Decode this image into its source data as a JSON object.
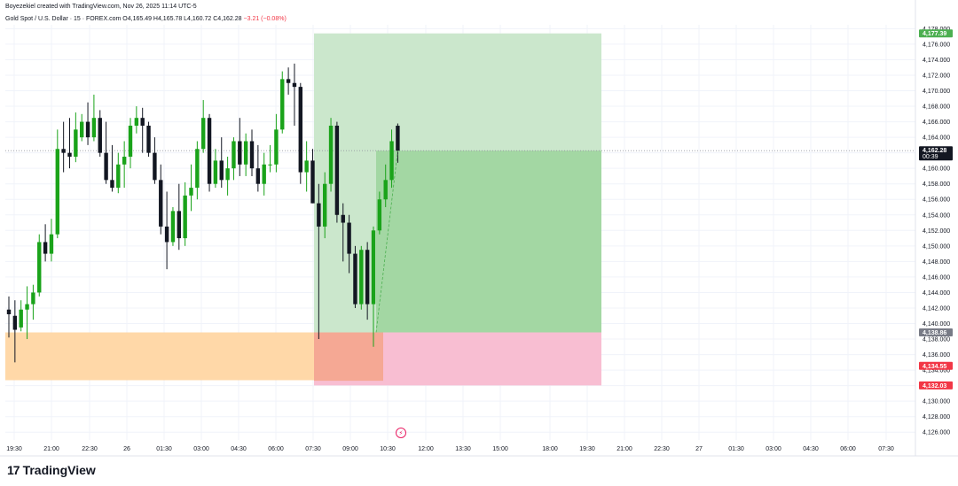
{
  "header": {
    "attribution": "Boyezekiel created with TradingView.com, Nov 26, 2025 11:14 UTC-5",
    "symbol": "Gold Spot / U.S. Dollar · 15 · FOREX.com",
    "ohlc": "O4,165.49  H4,165.78  L4,160.72  C4,162.28",
    "change": "−3.21 (−0.08%)"
  },
  "brand": {
    "name": "TradingView",
    "logo_text": "17"
  },
  "chart_data": {
    "type": "candlestick",
    "title": "Gold Spot / U.S. Dollar · 15 · FOREX.com",
    "ylim": [
      4125,
      4178.5
    ],
    "y_ticks": [
      4126,
      4128,
      4130,
      4132,
      4134,
      4136,
      4138,
      4140,
      4142,
      4144,
      4146,
      4148,
      4150,
      4152,
      4154,
      4156,
      4158,
      4160,
      4162,
      4164,
      4166,
      4168,
      4170,
      4172,
      4174,
      4176,
      4178
    ],
    "x_tick_labels": [
      "19:30",
      "21:00",
      "22:30",
      "26",
      "01:30",
      "03:00",
      "04:30",
      "06:00",
      "07:30",
      "09:00",
      "10:30",
      "12:00",
      "13:30",
      "15:00",
      "18:00",
      "19:30",
      "21:00",
      "22:30",
      "27",
      "01:30",
      "03:00",
      "04:30",
      "06:00",
      "07:30"
    ],
    "price_labels": [
      {
        "text": "4,177.39",
        "value": 4177.39,
        "color": "#4caf50"
      },
      {
        "text": "4,162.28",
        "sub": "00:39",
        "value": 4162.28,
        "color": "#131722"
      },
      {
        "text": "4,138.86",
        "value": 4138.86,
        "color": "#787b86"
      },
      {
        "text": "4,134.55",
        "value": 4134.55,
        "color": "#f23645"
      },
      {
        "text": "4,132.03",
        "value": 4132.03,
        "color": "#f23645"
      }
    ],
    "last_price": 4162.28,
    "colors": {
      "up": "#089981",
      "up_candle": "#1aa31a",
      "down": "#131722"
    },
    "candles": [
      [
        4141.8,
        4143.5,
        4138.2,
        4141.2
      ],
      [
        4141.0,
        4143.0,
        4135.0,
        4139.2
      ],
      [
        4139.5,
        4143.0,
        4139.0,
        4141.8
      ],
      [
        4141.8,
        4144.8,
        4138.0,
        4142.5
      ],
      [
        4142.5,
        4145.0,
        4140.5,
        4144.0
      ],
      [
        4144.0,
        4151.5,
        4143.5,
        4150.5
      ],
      [
        4150.5,
        4152.8,
        4148.0,
        4149.0
      ],
      [
        4149.0,
        4153.5,
        4148.0,
        4151.5
      ],
      [
        4151.5,
        4165.0,
        4151.0,
        4162.5
      ],
      [
        4162.5,
        4166.0,
        4159.5,
        4162.0
      ],
      [
        4162.0,
        4166.5,
        4160.0,
        4161.5
      ],
      [
        4161.5,
        4167.2,
        4160.8,
        4165.0
      ],
      [
        4164.0,
        4167.0,
        4163.5,
        4166.0
      ],
      [
        4166.0,
        4168.5,
        4163.0,
        4164.0
      ],
      [
        4164.0,
        4169.5,
        4163.5,
        4166.5
      ],
      [
        4166.5,
        4167.5,
        4161.5,
        4162.0
      ],
      [
        4162.0,
        4166.0,
        4158.0,
        4158.5
      ],
      [
        4158.5,
        4163.0,
        4157.0,
        4157.5
      ],
      [
        4157.5,
        4162.0,
        4156.8,
        4160.5
      ],
      [
        4160.5,
        4163.5,
        4157.5,
        4161.5
      ],
      [
        4161.5,
        4166.5,
        4160.0,
        4165.5
      ],
      [
        4165.5,
        4168.0,
        4164.5,
        4166.5
      ],
      [
        4166.5,
        4167.8,
        4162.0,
        4165.5
      ],
      [
        4165.5,
        4166.0,
        4161.5,
        4162.0
      ],
      [
        4162.0,
        4164.0,
        4158.0,
        4158.5
      ],
      [
        4158.5,
        4160.5,
        4151.5,
        4152.5
      ],
      [
        4152.5,
        4157.0,
        4147.0,
        4150.5
      ],
      [
        4150.5,
        4155.0,
        4150.0,
        4154.5
      ],
      [
        4154.5,
        4158.0,
        4149.5,
        4151.0
      ],
      [
        4151.0,
        4158.2,
        4150.0,
        4156.5
      ],
      [
        4156.5,
        4160.5,
        4154.5,
        4157.5
      ],
      [
        4157.5,
        4163.5,
        4156.0,
        4162.5
      ],
      [
        4162.5,
        4168.8,
        4162.0,
        4166.5
      ],
      [
        4166.5,
        4167.0,
        4157.0,
        4158.0
      ],
      [
        4158.0,
        4162.5,
        4157.5,
        4161.0
      ],
      [
        4161.0,
        4164.0,
        4157.5,
        4158.5
      ],
      [
        4158.5,
        4161.5,
        4156.5,
        4160.0
      ],
      [
        4160.0,
        4164.0,
        4158.5,
        4163.5
      ],
      [
        4163.5,
        4166.5,
        4159.0,
        4160.5
      ],
      [
        4160.5,
        4164.5,
        4159.0,
        4163.5
      ],
      [
        4163.5,
        4165.0,
        4159.0,
        4160.0
      ],
      [
        4160.0,
        4163.0,
        4157.0,
        4158.0
      ],
      [
        4158.0,
        4162.0,
        4156.5,
        4160.5
      ],
      [
        4160.5,
        4163.0,
        4159.5,
        4160.5
      ],
      [
        4160.5,
        4167.0,
        4159.5,
        4165.0
      ],
      [
        4165.0,
        4172.5,
        4164.5,
        4171.5
      ],
      [
        4171.5,
        4173.0,
        4169.5,
        4171.0
      ],
      [
        4171.0,
        4173.5,
        4165.5,
        4170.5
      ],
      [
        4170.5,
        4171.0,
        4158.0,
        4159.5
      ],
      [
        4159.5,
        4163.5,
        4157.0,
        4161.0
      ],
      [
        4161.0,
        4162.5,
        4155.5,
        4155.5
      ],
      [
        4155.5,
        4158.0,
        4138.0,
        4152.5
      ],
      [
        4152.5,
        4159.5,
        4151.0,
        4158.0
      ],
      [
        4158.0,
        4166.5,
        4157.0,
        4165.5
      ],
      [
        4165.5,
        4166.0,
        4153.0,
        4154.0
      ],
      [
        4154.0,
        4155.5,
        4148.0,
        4153.0
      ],
      [
        4153.0,
        4154.0,
        4146.5,
        4149.0
      ],
      [
        4149.0,
        4150.0,
        4142.0,
        4142.5
      ],
      [
        4142.5,
        4150.0,
        4141.8,
        4149.5
      ],
      [
        4149.5,
        4150.5,
        4140.5,
        4142.5
      ],
      [
        4142.5,
        4152.5,
        4137.0,
        4152.0
      ],
      [
        4152.0,
        4157.0,
        4151.5,
        4156.0
      ],
      [
        4156.0,
        4160.5,
        4155.0,
        4158.5
      ],
      [
        4158.5,
        4165.0,
        4157.5,
        4163.5
      ],
      [
        4165.49,
        4165.78,
        4160.72,
        4162.28
      ]
    ],
    "positions": [
      {
        "type": "long",
        "entry": 4138.86,
        "target": 4177.39,
        "stop": 4132.03,
        "profit_color": "#c8e6c9",
        "stop_color": "#f8bbd0"
      }
    ],
    "zones": [
      {
        "top": 4138.86,
        "bottom": 4132.7,
        "color": "#ffd8a8"
      }
    ],
    "x_label_positions_note": "",
    "grid": true
  }
}
